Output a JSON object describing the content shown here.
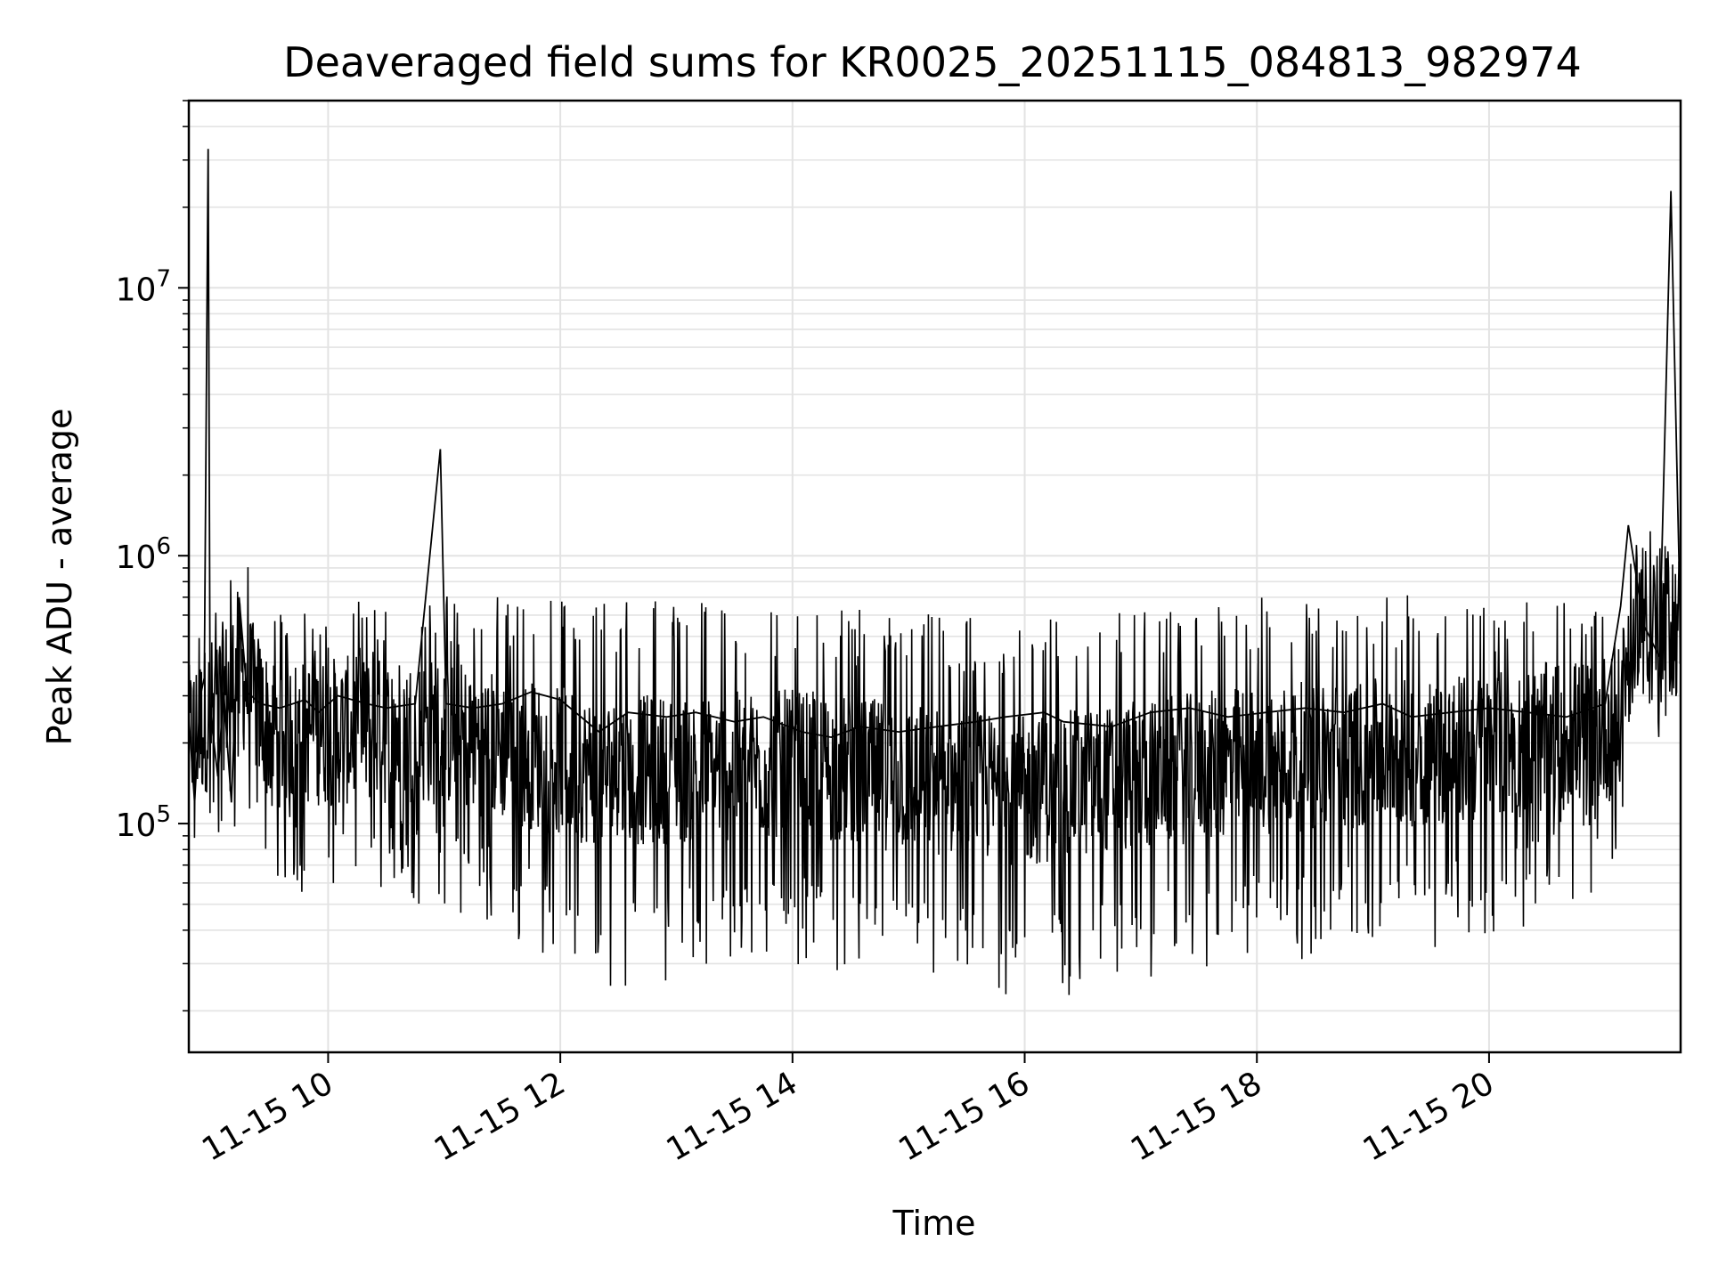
{
  "chart_data": {
    "type": "line",
    "title": "Deaveraged field sums for KR0025_20251115_084813_982974",
    "xlabel": "Time",
    "ylabel": "Peak ADU - average",
    "y_scale": "log",
    "ylim": [
      14000,
      50000000
    ],
    "xlim": [
      "2025-11-15 08:48",
      "2025-11-15 21:39"
    ],
    "grid": true,
    "series_color": "#000000",
    "x_ticks": [
      {
        "value": "2025-11-15 10:00",
        "label": "11-15 10"
      },
      {
        "value": "2025-11-15 12:00",
        "label": "11-15 12"
      },
      {
        "value": "2025-11-15 14:00",
        "label": "11-15 14"
      },
      {
        "value": "2025-11-15 16:00",
        "label": "11-15 16"
      },
      {
        "value": "2025-11-15 18:00",
        "label": "11-15 18"
      },
      {
        "value": "2025-11-15 20:00",
        "label": "11-15 20"
      }
    ],
    "y_ticks": [
      {
        "value": 100000,
        "base": "10",
        "exp": "5"
      },
      {
        "value": 1000000,
        "base": "10",
        "exp": "6"
      },
      {
        "value": 10000000,
        "base": "10",
        "exp": "7"
      }
    ],
    "series": [
      {
        "x": [
          "2025-11-15 08:48",
          "2025-11-15 08:51",
          "2025-11-15 08:54",
          "2025-11-15 08:56",
          "2025-11-15 08:58",
          "2025-11-15 08:59",
          "2025-11-15 09:00",
          "2025-11-15 09:03",
          "2025-11-15 09:06",
          "2025-11-15 09:10",
          "2025-11-15 09:14",
          "2025-11-15 09:18",
          "2025-11-15 09:25",
          "2025-11-15 09:35",
          "2025-11-15 09:48",
          "2025-11-15 09:55",
          "2025-11-15 10:05",
          "2025-11-15 10:20",
          "2025-11-15 10:30",
          "2025-11-15 10:45",
          "2025-11-15 10:58",
          "2025-11-15 11:01",
          "2025-11-15 11:15",
          "2025-11-15 11:30",
          "2025-11-15 11:45",
          "2025-11-15 12:00",
          "2025-11-15 12:20",
          "2025-11-15 12:35",
          "2025-11-15 12:55",
          "2025-11-15 13:10",
          "2025-11-15 13:30",
          "2025-11-15 13:45",
          "2025-11-15 14:05",
          "2025-11-15 14:20",
          "2025-11-15 14:35",
          "2025-11-15 14:55",
          "2025-11-15 15:15",
          "2025-11-15 15:35",
          "2025-11-15 15:50",
          "2025-11-15 16:10",
          "2025-11-15 16:20",
          "2025-11-15 16:45",
          "2025-11-15 17:05",
          "2025-11-15 17:25",
          "2025-11-15 17:45",
          "2025-11-15 18:05",
          "2025-11-15 18:25",
          "2025-11-15 18:45",
          "2025-11-15 19:05",
          "2025-11-15 19:20",
          "2025-11-15 19:40",
          "2025-11-15 20:00",
          "2025-11-15 20:20",
          "2025-11-15 20:40",
          "2025-11-15 21:00",
          "2025-11-15 21:08",
          "2025-11-15 21:12",
          "2025-11-15 21:20",
          "2025-11-15 21:28",
          "2025-11-15 21:34",
          "2025-11-15 21:39"
        ],
        "values": [
          250000,
          120000,
          300000,
          350000,
          33000000,
          280000,
          230000,
          150000,
          310000,
          120000,
          700000,
          310000,
          280000,
          270000,
          290000,
          260000,
          300000,
          280000,
          270000,
          280000,
          2500000,
          280000,
          270000,
          280000,
          310000,
          290000,
          220000,
          260000,
          250000,
          260000,
          240000,
          250000,
          220000,
          210000,
          230000,
          220000,
          230000,
          240000,
          250000,
          260000,
          240000,
          230000,
          260000,
          270000,
          250000,
          260000,
          270000,
          260000,
          280000,
          250000,
          260000,
          270000,
          260000,
          250000,
          280000,
          650000,
          1300000,
          550000,
          420000,
          23000000,
          500000
        ]
      }
    ],
    "noise_band": [
      {
        "x": "2025-11-15 08:48",
        "low": 90000,
        "high": 420000
      },
      {
        "x": "2025-11-15 09:15",
        "low": 150000,
        "high": 800000
      },
      {
        "x": "2025-11-15 09:30",
        "low": 90000,
        "high": 500000
      },
      {
        "x": "2025-11-15 11:00",
        "low": 80000,
        "high": 550000
      },
      {
        "x": "2025-11-15 12:20",
        "low": 40000,
        "high": 550000
      },
      {
        "x": "2025-11-15 14:00",
        "low": 50000,
        "high": 500000
      },
      {
        "x": "2025-11-15 16:00",
        "low": 35000,
        "high": 450000
      },
      {
        "x": "2025-11-15 18:00",
        "low": 50000,
        "high": 550000
      },
      {
        "x": "2025-11-15 20:00",
        "low": 60000,
        "high": 550000
      },
      {
        "x": "2025-11-15 21:08",
        "low": 100000,
        "high": 500000
      },
      {
        "x": "2025-11-15 21:15",
        "low": 300000,
        "high": 1200000
      },
      {
        "x": "2025-11-15 21:39",
        "low": 300000,
        "high": 900000
      }
    ]
  }
}
